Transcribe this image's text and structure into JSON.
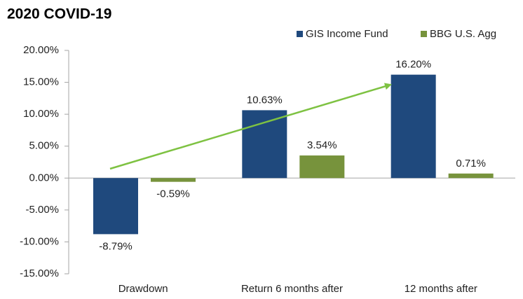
{
  "chart_data": {
    "type": "bar",
    "title": "2020 COVID-19",
    "categories": [
      "Drawdown",
      "Return 6 months after",
      "12 months after"
    ],
    "series": [
      {
        "name": "GIS Income Fund",
        "color": "#1f497d",
        "values": [
          -8.79,
          10.63,
          16.2
        ],
        "value_labels": [
          "-8.79%",
          "10.63%",
          "16.20%"
        ]
      },
      {
        "name": "BBG U.S. Agg",
        "color": "#77933c",
        "values": [
          -0.59,
          3.54,
          0.71
        ],
        "value_labels": [
          "-0.59%",
          "3.54%",
          "0.71%"
        ]
      }
    ],
    "ylim": [
      -15,
      20
    ],
    "yticks": [
      {
        "value": -15,
        "label": "-15.00%"
      },
      {
        "value": -10,
        "label": "-10.00%"
      },
      {
        "value": -5,
        "label": "-5.00%"
      },
      {
        "value": 0,
        "label": "0.00%"
      },
      {
        "value": 5,
        "label": "5.00%"
      },
      {
        "value": 10,
        "label": "10.00%"
      },
      {
        "value": 15,
        "label": "15.00%"
      },
      {
        "value": 20,
        "label": "20.00%"
      }
    ],
    "legend": "top-right",
    "grid": false
  }
}
